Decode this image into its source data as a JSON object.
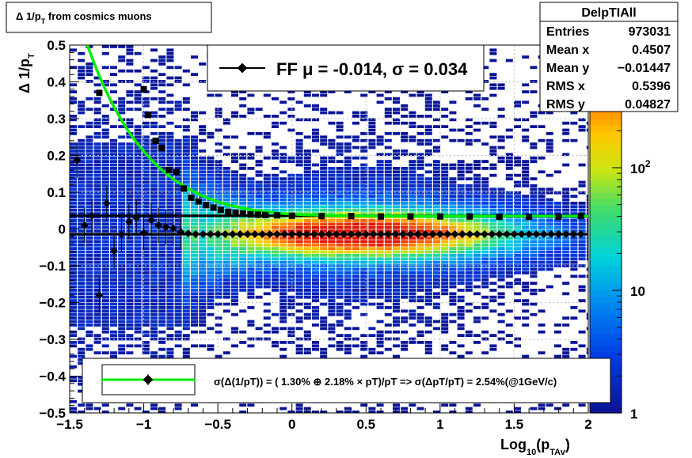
{
  "window_title": "Δ 1/pT from cosmics muons",
  "title": {
    "delta": "Δ 1/p",
    "sub": "T",
    "rest": " from cosmics muons"
  },
  "stats_box": {
    "name": "DelpTIAll",
    "rows": [
      {
        "label": "Entries",
        "value": "973031"
      },
      {
        "label": "Mean x",
        "value": "0.4507"
      },
      {
        "label": "Mean y",
        "value": "−0.01447"
      },
      {
        "label": "RMS x",
        "value": "0.5396"
      },
      {
        "label": "RMS y",
        "value": "0.04827"
      }
    ]
  },
  "legend_ff": {
    "text": "FF μ = -0.014, σ =   0.034"
  },
  "legend_bottom": {
    "text": "σ(Δ(1/pT)) = ( 1.30% ⊕  2.18% × pT)/pT => σ(ΔpT/pT) =  2.54%(@1GeV/c)"
  },
  "colors": {
    "fit_line": "#00ee00",
    "marker": "#000000"
  },
  "chart_data": {
    "type": "heatmap",
    "xlabel": {
      "main": "Log",
      "sub1": "10",
      "mid": "(p",
      "sub2": "TAv",
      "end": ")"
    },
    "ylabel": {
      "main": "Δ 1/p",
      "sub": "T"
    },
    "xlim": [
      -1.5,
      2.0
    ],
    "ylim": [
      -0.5,
      0.5
    ],
    "grid": true,
    "log_z": true,
    "zlim": [
      1,
      1000
    ],
    "x_ticks": [
      "−1.5",
      "−1",
      "−0.5",
      "0",
      "0.5",
      "1",
      "1.5",
      "2"
    ],
    "x_tick_values": [
      -1.5,
      -1.0,
      -0.5,
      0.0,
      0.5,
      1.0,
      1.5,
      2.0
    ],
    "y_ticks": [
      "−0.5",
      "−0.4",
      "−0.3",
      "−0.2",
      "−0.1",
      "0",
      "0.1",
      "0.2",
      "0.3",
      "0.4",
      "0.5"
    ],
    "y_tick_values": [
      -0.5,
      -0.4,
      -0.3,
      -0.2,
      -0.1,
      0.0,
      0.1,
      0.2,
      0.3,
      0.4,
      0.5
    ],
    "z_ticks": [
      {
        "value": 1,
        "label": "1"
      },
      {
        "value": 10,
        "label": "10"
      },
      {
        "value": 100,
        "label": "10",
        "sup": "2"
      }
    ],
    "mean_points": {
      "name": "FF μ",
      "x": [
        -1.45,
        -1.4,
        -1.35,
        -1.3,
        -1.25,
        -1.2,
        -1.15,
        -1.1,
        -1.05,
        -1.0,
        -0.95,
        -0.9,
        -0.85,
        -0.8,
        -0.75,
        -0.7,
        -0.65,
        -0.6,
        -0.55,
        -0.5,
        -0.45,
        -0.4,
        -0.35,
        -0.3,
        -0.25,
        -0.2,
        -0.15,
        -0.1,
        -0.05,
        0.0,
        0.05,
        0.1,
        0.15,
        0.2,
        0.25,
        0.3,
        0.35,
        0.4,
        0.45,
        0.5,
        0.55,
        0.6,
        0.65,
        0.7,
        0.75,
        0.8,
        0.85,
        0.9,
        0.95,
        1.0,
        1.05,
        1.1,
        1.15,
        1.2,
        1.25,
        1.3,
        1.35,
        1.4,
        1.45,
        1.5,
        1.55,
        1.6,
        1.65,
        1.7,
        1.75,
        1.8,
        1.85,
        1.9,
        1.95
      ],
      "y": [
        0.187,
        0.01,
        0.036,
        -0.18,
        0.07,
        -0.06,
        -0.015,
        0.02,
        0.03,
        -0.01,
        0.024,
        0.01,
        0.005,
        0.002,
        -0.008,
        -0.012,
        -0.014,
        -0.014,
        -0.014,
        -0.014,
        -0.014,
        -0.014,
        -0.014,
        -0.014,
        -0.014,
        -0.014,
        -0.014,
        -0.014,
        -0.014,
        -0.014,
        -0.014,
        -0.014,
        -0.014,
        -0.014,
        -0.014,
        -0.014,
        -0.014,
        -0.014,
        -0.014,
        -0.014,
        -0.014,
        -0.014,
        -0.014,
        -0.014,
        -0.014,
        -0.014,
        -0.014,
        -0.014,
        -0.014,
        -0.014,
        -0.014,
        -0.014,
        -0.014,
        -0.014,
        -0.014,
        -0.014,
        -0.014,
        -0.014,
        -0.014,
        -0.014,
        -0.014,
        -0.014,
        -0.014,
        -0.014,
        -0.014,
        -0.014,
        -0.014,
        -0.014,
        -0.014
      ]
    },
    "sigma_points": {
      "x": [
        -1.3,
        -1.0,
        -0.97,
        -0.92,
        -0.88,
        -0.83,
        -0.78,
        -0.73,
        -0.68,
        -0.63,
        -0.58,
        -0.53,
        -0.48,
        -0.43,
        -0.38,
        -0.33,
        -0.28,
        -0.23,
        -0.18,
        -0.1,
        0.0,
        0.2,
        0.4,
        0.6,
        0.8,
        1.0,
        1.2,
        1.4,
        1.6,
        1.8,
        1.95
      ],
      "y": [
        0.37,
        0.38,
        0.31,
        0.24,
        0.22,
        0.16,
        0.155,
        0.11,
        0.085,
        0.075,
        0.065,
        0.058,
        0.052,
        0.047,
        0.044,
        0.042,
        0.04,
        0.039,
        0.038,
        0.037,
        0.036,
        0.035,
        0.035,
        0.034,
        0.034,
        0.034,
        0.034,
        0.033,
        0.033,
        0.033,
        0.035
      ]
    },
    "fit_curve": {
      "name": "σ(Δ(1/pT))",
      "stochastic_percent": 1.3,
      "constant_percent": 2.18,
      "x_range": [
        -1.45,
        2.0
      ]
    },
    "sigma_band_lines": [
      0.036,
      -0.014
    ]
  }
}
